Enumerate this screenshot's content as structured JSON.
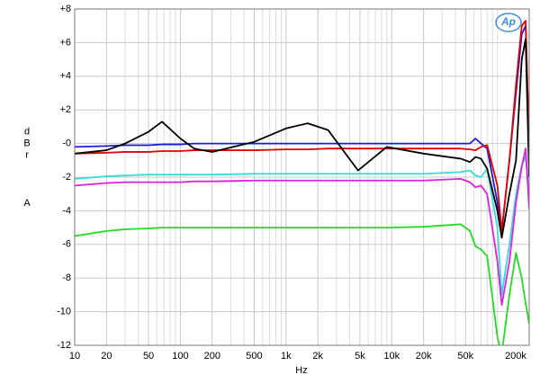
{
  "chart_data": {
    "type": "line",
    "xlabel": "Hz",
    "ylabel": "dBr",
    "ylabel_weighting": "A",
    "logo": "Ap",
    "xscale": "log",
    "grid": true,
    "xlim": [
      10,
      200000
    ],
    "ylim": [
      -12,
      8
    ],
    "xticks": [
      10,
      20,
      50,
      100,
      200,
      500,
      {
        "value": 1000,
        "label": "1k"
      },
      {
        "value": 2000,
        "label": "2k"
      },
      {
        "value": 5000,
        "label": "5k"
      },
      {
        "value": 10000,
        "label": "10k"
      },
      {
        "value": 20000,
        "label": "20k"
      },
      {
        "value": 50000,
        "label": "50k"
      },
      {
        "value": 200000,
        "label": "200k"
      }
    ],
    "xminor": [
      30,
      40,
      60,
      70,
      80,
      90,
      300,
      400,
      600,
      700,
      800,
      900,
      3000,
      4000,
      6000,
      7000,
      8000,
      9000,
      30000,
      40000,
      60000,
      70000,
      80000,
      90000,
      100000
    ],
    "yticks": [
      {
        "value": 8,
        "label": "+8"
      },
      {
        "value": 6,
        "label": "+6"
      },
      {
        "value": 4,
        "label": "+4"
      },
      {
        "value": 2,
        "label": "+2"
      },
      {
        "value": 0,
        "label": "-0"
      },
      -2,
      -4,
      -6,
      -8,
      -10,
      -12
    ],
    "x": [
      10,
      20,
      30,
      50,
      67,
      100,
      135,
      200,
      500,
      1000,
      1600,
      2500,
      4800,
      9000,
      20000,
      45000,
      55000,
      62000,
      70000,
      80000,
      100000,
      110000,
      130000,
      150000,
      170000,
      185000,
      200000
    ],
    "series": [
      {
        "name": "Blue",
        "color": "#1c1cd8",
        "values": [
          -0.2,
          -0.15,
          -0.1,
          -0.1,
          -0.05,
          -0.05,
          0,
          0,
          0,
          0,
          0,
          0,
          0,
          0,
          0,
          0,
          0,
          0.3,
          0,
          -0.3,
          -3.5,
          -5.2,
          -1,
          3,
          6.5,
          7,
          -0.1
        ]
      },
      {
        "name": "Red",
        "color": "#e00000",
        "values": [
          -0.6,
          -0.55,
          -0.5,
          -0.5,
          -0.45,
          -0.45,
          -0.4,
          -0.4,
          -0.4,
          -0.35,
          -0.35,
          -0.3,
          -0.3,
          -0.3,
          -0.3,
          -0.3,
          -0.35,
          -0.4,
          -0.2,
          -0.1,
          -2.5,
          -5.2,
          -1,
          3.5,
          7,
          7.3,
          -0.2
        ]
      },
      {
        "name": "Cyan",
        "color": "#33dcdc",
        "values": [
          -2.1,
          -1.95,
          -1.9,
          -1.85,
          -1.85,
          -1.85,
          -1.85,
          -1.85,
          -1.8,
          -1.8,
          -1.8,
          -1.8,
          -1.8,
          -1.8,
          -1.8,
          -1.7,
          -1.6,
          -1.9,
          -2,
          -1.5,
          -5,
          -9,
          -6,
          -3,
          -1.3,
          -0.8,
          -3
        ]
      },
      {
        "name": "Magenta",
        "color": "#dd22dd",
        "values": [
          -2.5,
          -2.35,
          -2.3,
          -2.3,
          -2.3,
          -2.3,
          -2.25,
          -2.25,
          -2.2,
          -2.2,
          -2.2,
          -2.2,
          -2.2,
          -2.2,
          -2.2,
          -2.1,
          -2.3,
          -2.6,
          -2.5,
          -3,
          -7,
          -9.6,
          -7,
          -3.5,
          -1.4,
          -0.3,
          -3.9
        ]
      },
      {
        "name": "Green",
        "color": "#22dd22",
        "values": [
          -5.5,
          -5.2,
          -5.1,
          -5.05,
          -5,
          -5,
          -5,
          -5,
          -5,
          -5,
          -5,
          -5,
          -5,
          -5,
          -4.95,
          -4.8,
          -5.2,
          -6.1,
          -6.3,
          -6.7,
          -11.5,
          -12.5,
          -9,
          -6.5,
          -8,
          -9.5,
          -10.7
        ]
      },
      {
        "name": "Black",
        "color": "#000000",
        "values": [
          -0.6,
          -0.4,
          0,
          0.7,
          1.3,
          0.3,
          -0.3,
          -0.5,
          0.1,
          0.9,
          1.2,
          0.8,
          -1.6,
          -0.2,
          -0.6,
          -0.9,
          -1.1,
          -0.8,
          -0.9,
          -1.5,
          -4,
          -5.6,
          -3,
          -1,
          5,
          6.2,
          -2
        ]
      }
    ]
  }
}
